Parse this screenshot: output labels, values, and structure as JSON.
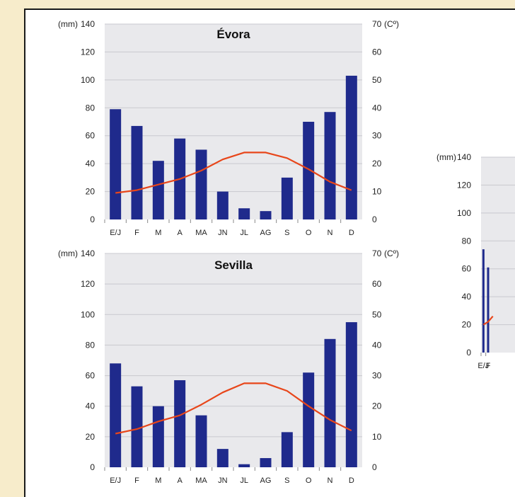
{
  "chart_data": [
    {
      "type": "bar",
      "title": "Évora",
      "categories": [
        "E/J",
        "F",
        "M",
        "A",
        "MA",
        "JN",
        "JL",
        "AG",
        "S",
        "O",
        "N",
        "D"
      ],
      "series": [
        {
          "values": [
            79,
            67,
            42,
            58,
            50,
            20,
            8,
            6,
            30,
            70,
            77,
            103
          ],
          "color": "#1f2a8c"
        },
        {
          "values": [
            9.5,
            10.5,
            12.5,
            14.5,
            17.5,
            21.5,
            24,
            24,
            22,
            18,
            13.5,
            10.5
          ],
          "color": "#e8461a",
          "axis": "right"
        }
      ],
      "ylabel_left": "(mm)",
      "ylabel_right": "(Cº)",
      "ylim_left": [
        0,
        140
      ],
      "ylim_right": [
        0,
        70
      ],
      "yticks_left": [
        "0",
        "20",
        "40",
        "60",
        "80",
        "100",
        "120",
        "140"
      ],
      "yticks_right": [
        "0",
        "10",
        "20",
        "30",
        "40",
        "50",
        "60",
        "70"
      ],
      "grid": true
    },
    {
      "type": "bar",
      "title": "Sevilla",
      "categories": [
        "E/J",
        "F",
        "M",
        "A",
        "MA",
        "JN",
        "JL",
        "AG",
        "S",
        "O",
        "N",
        "D"
      ],
      "series": [
        {
          "values": [
            68,
            53,
            40,
            57,
            34,
            12,
            2,
            6,
            23,
            62,
            84,
            95
          ],
          "color": "#1f2a8c"
        },
        {
          "values": [
            11,
            12.5,
            15,
            17,
            20.5,
            24.5,
            27.5,
            27.5,
            25,
            20,
            15.5,
            12
          ],
          "color": "#e8461a",
          "axis": "right"
        }
      ],
      "ylabel_left": "(mm)",
      "ylabel_right": "(Cº)",
      "ylim_left": [
        0,
        140
      ],
      "ylim_right": [
        0,
        70
      ],
      "yticks_left": [
        "0",
        "20",
        "40",
        "60",
        "80",
        "100",
        "120",
        "140"
      ],
      "yticks_right": [
        "0",
        "10",
        "20",
        "30",
        "40",
        "50",
        "60",
        "70"
      ],
      "grid": true
    },
    {
      "type": "bar",
      "title": "",
      "categories": [
        "E/J",
        "F"
      ],
      "series": [
        {
          "values": [
            74,
            61
          ],
          "color": "#1f2a8c"
        },
        {
          "values": [
            10,
            11
          ],
          "color": "#e8461a",
          "axis": "right"
        }
      ],
      "ylabel_left": "(mm)",
      "ylim_left": [
        0,
        140
      ],
      "yticks_left": [
        "0",
        "20",
        "40",
        "60",
        "80",
        "100",
        "120",
        "140"
      ],
      "grid": true
    }
  ],
  "colors": {
    "background": "#f7eccb",
    "plot": "#e9e9ec",
    "bar": "#1f2a8c",
    "line": "#e8461a"
  }
}
